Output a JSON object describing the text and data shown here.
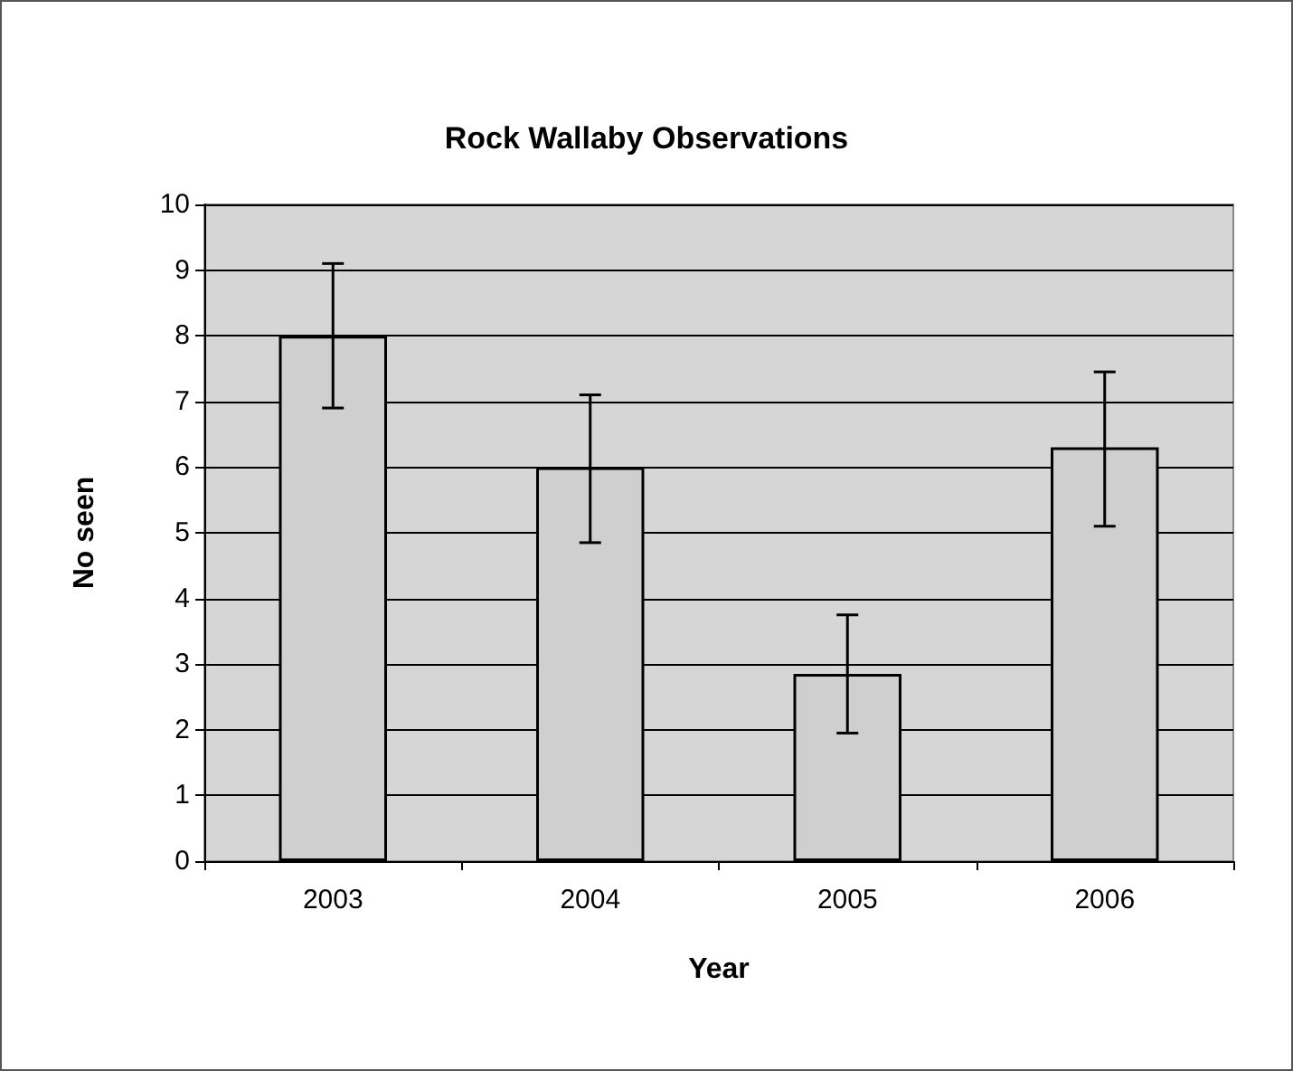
{
  "chart_data": {
    "type": "bar",
    "title": "Rock Wallaby Observations",
    "xlabel": "Year",
    "ylabel": "No seen",
    "categories": [
      "2003",
      "2004",
      "2005",
      "2006"
    ],
    "values": [
      8.0,
      6.0,
      2.85,
      6.3
    ],
    "errors": [
      [
        6.9,
        9.1
      ],
      [
        4.85,
        7.1
      ],
      [
        1.95,
        3.75
      ],
      [
        5.1,
        7.45
      ]
    ],
    "color": "#cfcfcf",
    "ylim": [
      0,
      10
    ],
    "yticks": [
      0,
      1,
      2,
      3,
      4,
      5,
      6,
      7,
      8,
      9,
      10
    ],
    "grid": "y"
  }
}
